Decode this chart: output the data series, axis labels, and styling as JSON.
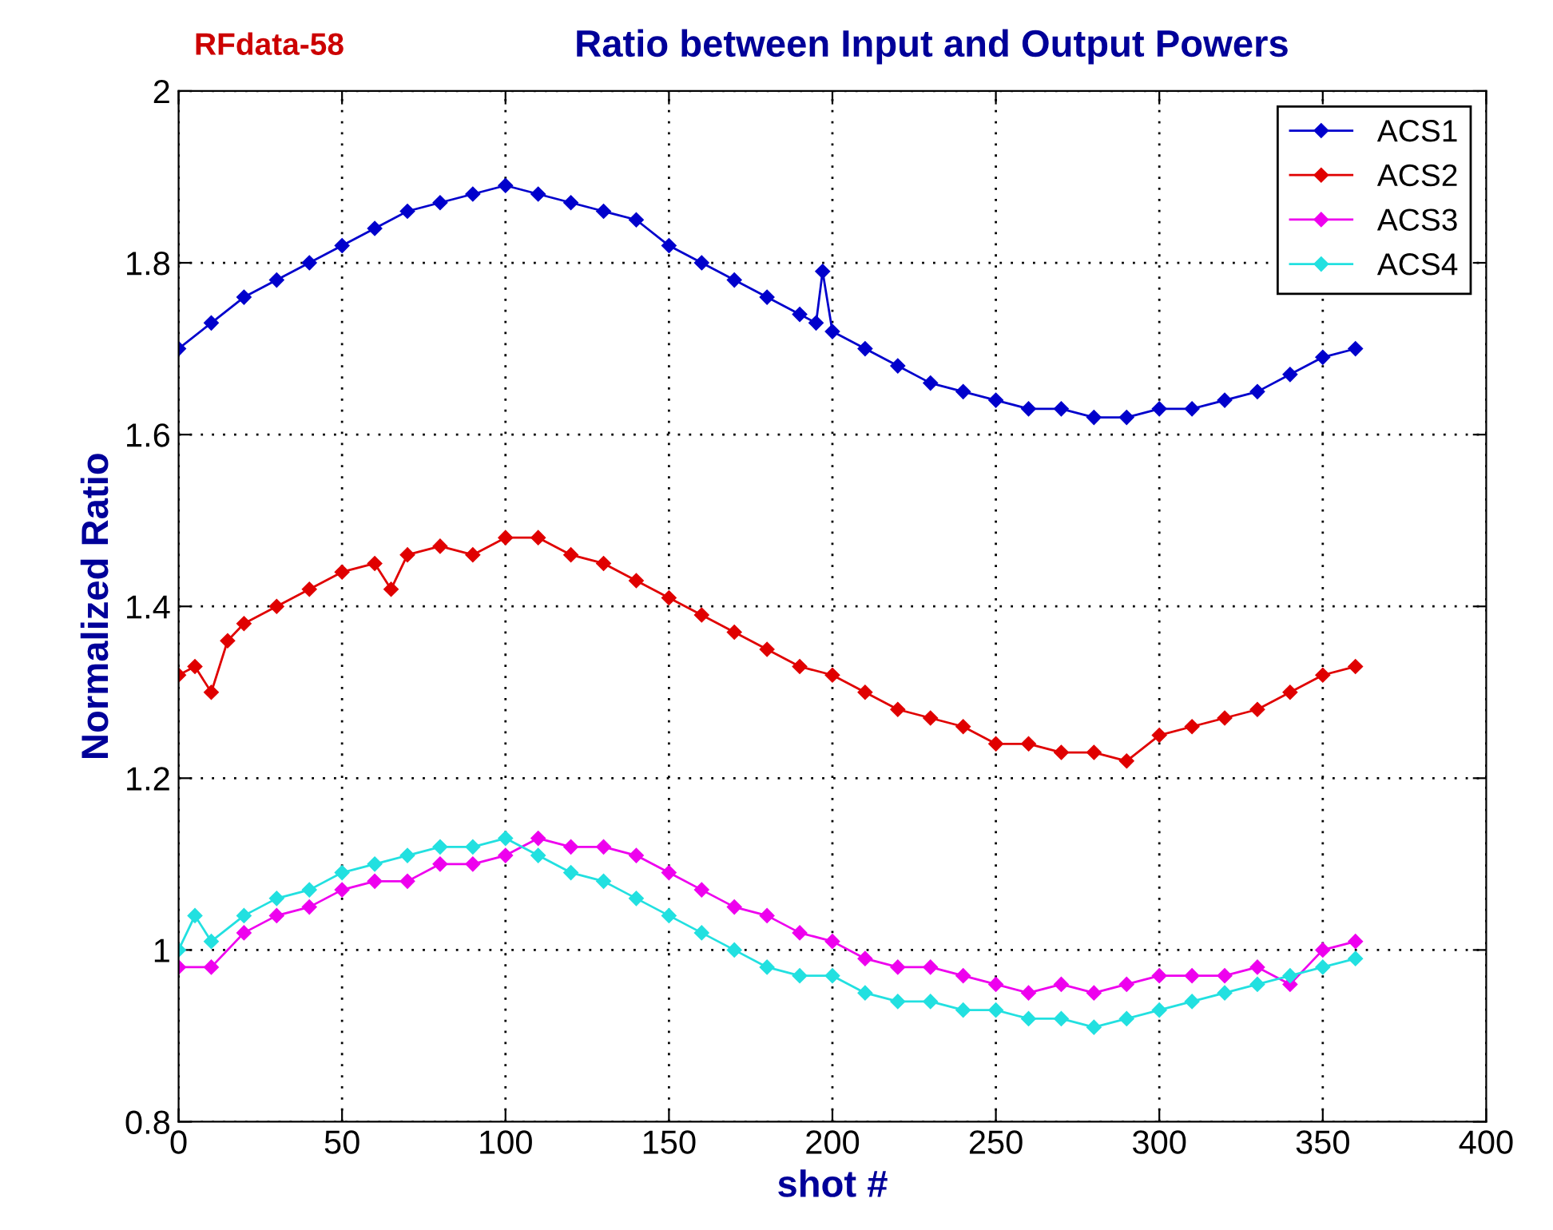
{
  "chart_data": {
    "type": "line",
    "title": "Ratio between Input and Output Powers",
    "annotations": [
      "RFdata-58"
    ],
    "xlabel": "shot #",
    "ylabel": "Normalized Ratio",
    "xlim": [
      0,
      400
    ],
    "xticks": [
      0,
      50,
      100,
      150,
      200,
      250,
      300,
      350,
      400
    ],
    "ylim": [
      0.8,
      2
    ],
    "yticks": [
      0.8,
      1,
      1.2,
      1.4,
      1.6,
      1.8,
      2
    ],
    "grid": true,
    "legend": "top right",
    "marker": "diamond",
    "line_style": "solid",
    "series": [
      {
        "name": "ACS1",
        "color": "#0000cc",
        "x": [
          0,
          10,
          20,
          30,
          40,
          50,
          60,
          70,
          80,
          90,
          100,
          110,
          120,
          130,
          140,
          150,
          160,
          170,
          180,
          190,
          195,
          197,
          200,
          210,
          220,
          230,
          240,
          250,
          260,
          270,
          280,
          290,
          300,
          310,
          320,
          330,
          340,
          350,
          360
        ],
        "values": [
          1.7,
          1.73,
          1.76,
          1.78,
          1.8,
          1.82,
          1.84,
          1.86,
          1.87,
          1.88,
          1.89,
          1.88,
          1.87,
          1.86,
          1.85,
          1.82,
          1.8,
          1.78,
          1.76,
          1.74,
          1.73,
          1.79,
          1.72,
          1.7,
          1.68,
          1.66,
          1.65,
          1.64,
          1.63,
          1.63,
          1.62,
          1.62,
          1.63,
          1.63,
          1.64,
          1.65,
          1.67,
          1.69,
          1.7
        ]
      },
      {
        "name": "ACS2",
        "color": "#e00000",
        "x": [
          0,
          5,
          10,
          15,
          20,
          30,
          40,
          50,
          60,
          65,
          70,
          80,
          90,
          100,
          110,
          120,
          130,
          140,
          150,
          160,
          170,
          180,
          190,
          200,
          210,
          220,
          230,
          240,
          250,
          260,
          270,
          280,
          290,
          300,
          310,
          320,
          330,
          340,
          350,
          360
        ],
        "values": [
          1.32,
          1.33,
          1.3,
          1.36,
          1.38,
          1.4,
          1.42,
          1.44,
          1.45,
          1.42,
          1.46,
          1.47,
          1.46,
          1.48,
          1.48,
          1.46,
          1.45,
          1.43,
          1.41,
          1.39,
          1.37,
          1.35,
          1.33,
          1.32,
          1.3,
          1.28,
          1.27,
          1.26,
          1.24,
          1.24,
          1.23,
          1.23,
          1.22,
          1.25,
          1.26,
          1.27,
          1.28,
          1.3,
          1.32,
          1.33
        ]
      },
      {
        "name": "ACS3",
        "color": "#ee00ee",
        "x": [
          0,
          10,
          20,
          30,
          40,
          50,
          60,
          70,
          80,
          90,
          100,
          110,
          120,
          130,
          140,
          150,
          160,
          170,
          180,
          190,
          200,
          210,
          220,
          230,
          240,
          250,
          260,
          270,
          280,
          290,
          300,
          310,
          320,
          330,
          340,
          350,
          360
        ],
        "values": [
          0.98,
          0.98,
          1.02,
          1.04,
          1.05,
          1.07,
          1.08,
          1.08,
          1.1,
          1.1,
          1.11,
          1.13,
          1.12,
          1.12,
          1.11,
          1.09,
          1.07,
          1.05,
          1.04,
          1.02,
          1.01,
          0.99,
          0.98,
          0.98,
          0.97,
          0.96,
          0.95,
          0.96,
          0.95,
          0.96,
          0.97,
          0.97,
          0.97,
          0.98,
          0.96,
          1.0,
          1.01
        ]
      },
      {
        "name": "ACS4",
        "color": "#22e0e0",
        "x": [
          0,
          5,
          10,
          20,
          30,
          40,
          50,
          60,
          70,
          80,
          90,
          100,
          110,
          120,
          130,
          140,
          150,
          160,
          170,
          180,
          190,
          200,
          210,
          220,
          230,
          240,
          250,
          260,
          270,
          280,
          290,
          300,
          310,
          320,
          330,
          340,
          350,
          360
        ],
        "values": [
          1.0,
          1.04,
          1.01,
          1.04,
          1.06,
          1.07,
          1.09,
          1.1,
          1.11,
          1.12,
          1.12,
          1.13,
          1.11,
          1.09,
          1.08,
          1.06,
          1.04,
          1.02,
          1.0,
          0.98,
          0.97,
          0.97,
          0.95,
          0.94,
          0.94,
          0.93,
          0.93,
          0.92,
          0.92,
          0.91,
          0.92,
          0.93,
          0.94,
          0.95,
          0.96,
          0.97,
          0.98,
          0.99
        ]
      }
    ]
  }
}
